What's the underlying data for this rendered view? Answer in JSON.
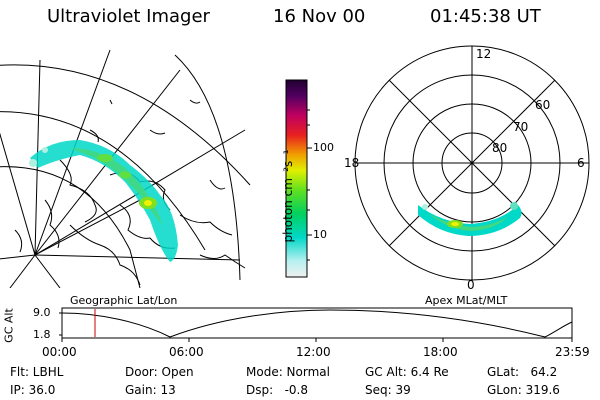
{
  "header": {
    "title": "Ultraviolet Imager",
    "date": "16 Nov 00",
    "time": "01:45:38 UT"
  },
  "colorbar": {
    "unit_label": "photon cm⁻²s⁻¹",
    "ticks": [
      "100",
      "10"
    ]
  },
  "polar_plot": {
    "mlt_labels": {
      "top": "12",
      "right": "6",
      "bottom": "0",
      "left": "18"
    },
    "lat_labels": [
      "60",
      "70",
      "80"
    ]
  },
  "panel_labels": {
    "left": "Geographic Lat/Lon",
    "right": "Apex MLat/MLT"
  },
  "altitude_plot": {
    "ylabel": "GC Alt",
    "ytick_high": "9.0",
    "ytick_low": "1.8",
    "xticks": [
      "00:00",
      "06:00",
      "12:00",
      "18:00",
      "23:59"
    ],
    "current_time_marker": "01:45:38"
  },
  "info": {
    "filter": "Flt: LBHL",
    "door": "Door: Open",
    "mode": "Mode: Normal",
    "gc_alt": "GC Alt: 6.4 Re",
    "glat": "GLat:   64.2",
    "ip": "IP: 36.0",
    "gain": "Gain: 13",
    "dsp": "Dsp:   -0.8",
    "seq": "Seq: 39",
    "glon": "GLon: 319.6"
  },
  "colors": {
    "foreground": "#000000",
    "time_marker": "#cc0000",
    "aurora_low": "#00d8c8",
    "aurora_mid": "#80e020",
    "aurora_high": "#f0f000"
  }
}
